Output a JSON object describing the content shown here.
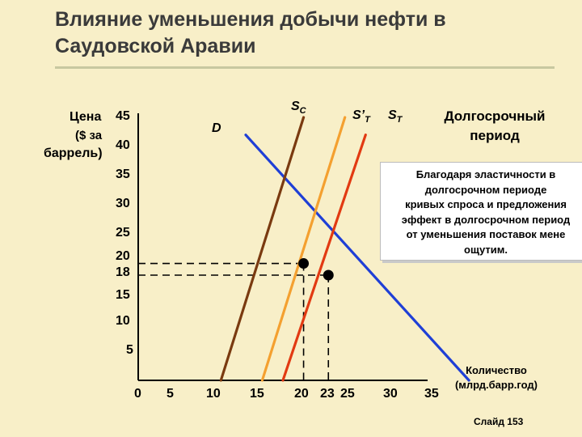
{
  "title": "Влияние уменьшения добычи нефти в Саудовской Аравии",
  "y_axis_label_lines": [
    "Цена",
    "($ за",
    "баррель)"
  ],
  "x_axis_label_lines": [
    "Количество",
    "(млрд.барр.год)"
  ],
  "long_run_title_lines": [
    "Долгосрочный",
    "период"
  ],
  "note_lines": [
    "Благодаря эластичности в",
    "долгосрочном периоде",
    "кривых  спроса и предложения",
    "эффект в долгосрочном период",
    "от уменьшения поставок мене",
    "ощутим."
  ],
  "slide_label": "Слайд 153",
  "curve_labels": {
    "demand": "D",
    "supply_competitive": "S",
    "supply_competitive_sub": "C",
    "supply_new": "S’",
    "supply_new_sub": "T",
    "supply_total": "S",
    "supply_total_sub": "T"
  },
  "colors": {
    "background": "#f8efc8",
    "demand": "#1f3fd6",
    "supply_competitive": "#7a3a10",
    "supply_new": "#f4a030",
    "supply_total": "#e23a12",
    "axis": "#000000"
  },
  "chart_data": {
    "type": "line",
    "title": "Влияние уменьшения добычи нефти в Саудовской Аравии",
    "xlabel": "Количество (млрд.барр.год)",
    "ylabel": "Цена ($ за баррель)",
    "xlim": [
      0,
      35
    ],
    "ylim": [
      0,
      45
    ],
    "x_ticks": [
      "0",
      "5",
      "10",
      "15",
      "20",
      "23",
      "25",
      "30",
      "35"
    ],
    "y_ticks": [
      "5",
      "10",
      "15",
      "18",
      "20",
      "25",
      "30",
      "35",
      "40",
      "45"
    ],
    "series": [
      {
        "name": "D",
        "points": [
          [
            13,
            42
          ],
          [
            40,
            0
          ]
        ]
      },
      {
        "name": "S",
        "subscript": "C",
        "points": [
          [
            10,
            0
          ],
          [
            20,
            45
          ]
        ]
      },
      {
        "name": "S’",
        "subscript": "T",
        "points": [
          [
            15,
            0
          ],
          [
            25,
            45
          ]
        ]
      },
      {
        "name": "S",
        "subscript": "T",
        "points": [
          [
            17.5,
            0
          ],
          [
            27.5,
            42
          ]
        ]
      }
    ],
    "equilibria": [
      {
        "x": 20,
        "y": 20
      },
      {
        "x": 23,
        "y": 18
      }
    ],
    "grid": false
  }
}
